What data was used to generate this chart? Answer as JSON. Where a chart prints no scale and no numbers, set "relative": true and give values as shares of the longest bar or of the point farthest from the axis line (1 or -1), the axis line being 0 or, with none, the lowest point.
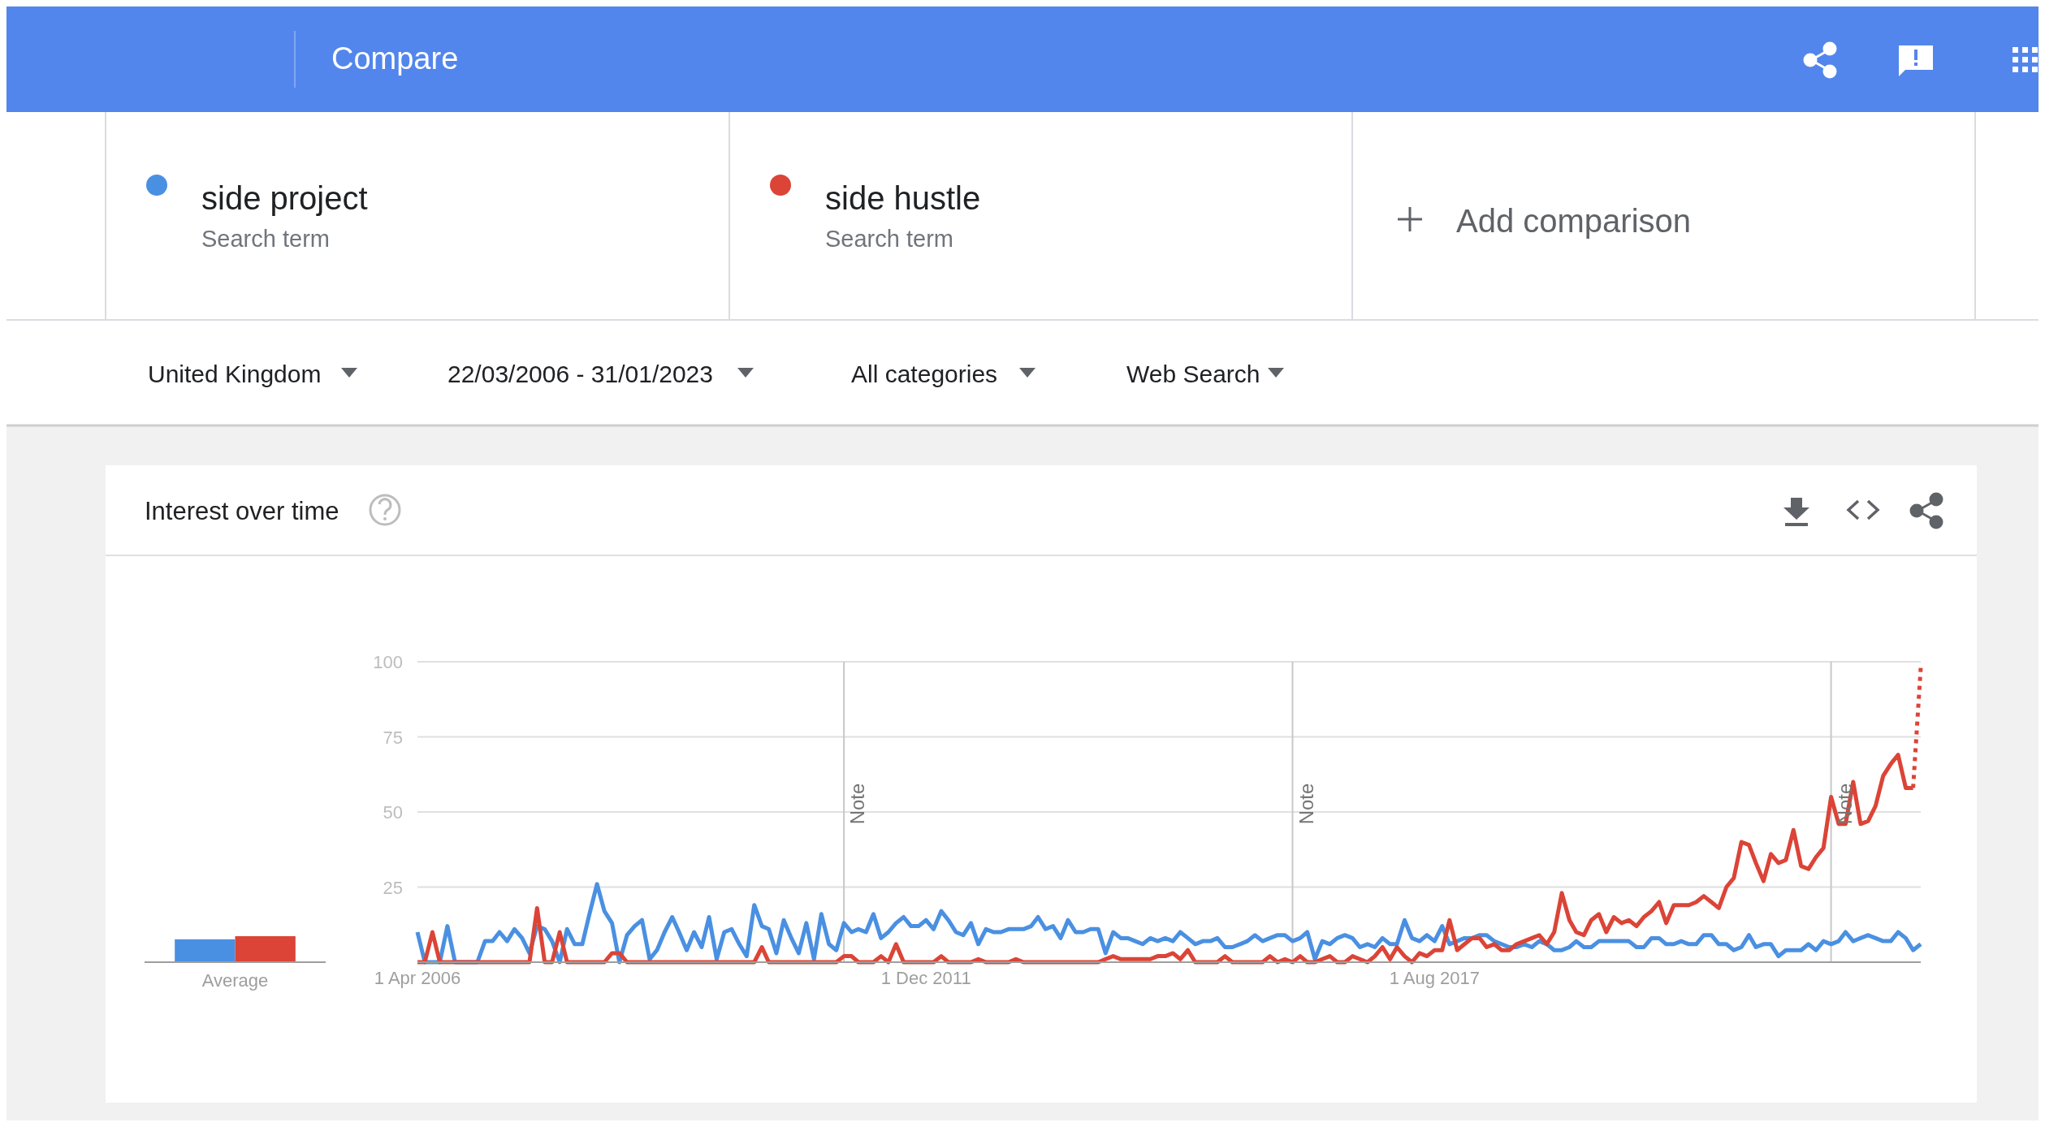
{
  "chart_data": [
    {
      "type": "bar",
      "relative": true,
      "categories": [
        "Average"
      ],
      "legend": false,
      "series": [
        {
          "color": "#4a90e2",
          "values": [
            0.88
          ]
        },
        {
          "color": "#db4437",
          "values": [
            1
          ]
        }
      ]
    },
    {
      "type": "line",
      "title": "Interest over time",
      "legend": "top",
      "grid": "y",
      "ylim": [
        0,
        100
      ],
      "yticks": [
        25,
        50,
        75,
        100
      ],
      "xlim": [
        "2006-04",
        "2023-01"
      ],
      "xticks": [
        {
          "value": "2006-04-01",
          "label": "1 Apr 2006"
        },
        {
          "value": "2011-12-01",
          "label": "1 Dec 2011"
        },
        {
          "value": "2017-08-01",
          "label": "1 Aug 2017"
        }
      ],
      "ref_lines": [
        {
          "axis": "x",
          "value": "2011-01",
          "label": "Note"
        },
        {
          "axis": "x",
          "value": "2016-01",
          "label": "Note"
        },
        {
          "axis": "x",
          "value": "2022-01",
          "label": "Note"
        }
      ],
      "annotations": [
        "Compare",
        "Search term",
        "Search term",
        "Add comparison",
        "United Kingdom",
        "22/03/2006 - 31/01/2023",
        "All categories",
        "Web Search"
      ],
      "x": [
        "2006-04",
        "2006-05",
        "2006-06",
        "2006-07",
        "2006-08",
        "2006-09",
        "2006-10",
        "2006-11",
        "2006-12",
        "2007-01",
        "2007-02",
        "2007-03",
        "2007-04",
        "2007-05",
        "2007-06",
        "2007-07",
        "2007-08",
        "2007-09",
        "2007-10",
        "2007-11",
        "2007-12",
        "2008-01",
        "2008-02",
        "2008-03",
        "2008-04",
        "2008-05",
        "2008-06",
        "2008-07",
        "2008-08",
        "2008-09",
        "2008-10",
        "2008-11",
        "2008-12",
        "2009-01",
        "2009-02",
        "2009-03",
        "2009-04",
        "2009-05",
        "2009-06",
        "2009-07",
        "2009-08",
        "2009-09",
        "2009-10",
        "2009-11",
        "2009-12",
        "2010-01",
        "2010-02",
        "2010-03",
        "2010-04",
        "2010-05",
        "2010-06",
        "2010-07",
        "2010-08",
        "2010-09",
        "2010-10",
        "2010-11",
        "2010-12",
        "2011-01",
        "2011-02",
        "2011-03",
        "2011-04",
        "2011-05",
        "2011-06",
        "2011-07",
        "2011-08",
        "2011-09",
        "2011-10",
        "2011-11",
        "2011-12",
        "2012-01",
        "2012-02",
        "2012-03",
        "2012-04",
        "2012-05",
        "2012-06",
        "2012-07",
        "2012-08",
        "2012-09",
        "2012-10",
        "2012-11",
        "2012-12",
        "2013-01",
        "2013-02",
        "2013-03",
        "2013-04",
        "2013-05",
        "2013-06",
        "2013-07",
        "2013-08",
        "2013-09",
        "2013-10",
        "2013-11",
        "2013-12",
        "2014-01",
        "2014-02",
        "2014-03",
        "2014-04",
        "2014-05",
        "2014-06",
        "2014-07",
        "2014-08",
        "2014-09",
        "2014-10",
        "2014-11",
        "2014-12",
        "2015-01",
        "2015-02",
        "2015-03",
        "2015-04",
        "2015-05",
        "2015-06",
        "2015-07",
        "2015-08",
        "2015-09",
        "2015-10",
        "2015-11",
        "2015-12",
        "2016-01",
        "2016-02",
        "2016-03",
        "2016-04",
        "2016-05",
        "2016-06",
        "2016-07",
        "2016-08",
        "2016-09",
        "2016-10",
        "2016-11",
        "2016-12",
        "2017-01",
        "2017-02",
        "2017-03",
        "2017-04",
        "2017-05",
        "2017-06",
        "2017-07",
        "2017-08",
        "2017-09",
        "2017-10",
        "2017-11",
        "2017-12",
        "2018-01",
        "2018-02",
        "2018-03",
        "2018-04",
        "2018-05",
        "2018-06",
        "2018-07",
        "2018-08",
        "2018-09",
        "2018-10",
        "2018-11",
        "2018-12",
        "2019-01",
        "2019-02",
        "2019-03",
        "2019-04",
        "2019-05",
        "2019-06",
        "2019-07",
        "2019-08",
        "2019-09",
        "2019-10",
        "2019-11",
        "2019-12",
        "2020-01",
        "2020-02",
        "2020-03",
        "2020-04",
        "2020-05",
        "2020-06",
        "2020-07",
        "2020-08",
        "2020-09",
        "2020-10",
        "2020-11",
        "2020-12",
        "2021-01",
        "2021-02",
        "2021-03",
        "2021-04",
        "2021-05",
        "2021-06",
        "2021-07",
        "2021-08",
        "2021-09",
        "2021-10",
        "2021-11",
        "2021-12",
        "2022-01",
        "2022-02",
        "2022-03",
        "2022-04",
        "2022-05",
        "2022-06",
        "2022-07",
        "2022-08",
        "2022-09",
        "2022-10",
        "2022-11",
        "2022-12",
        "2023-01"
      ],
      "series": [
        {
          "name": "side project",
          "color": "#4a90e2",
          "values": [
            10,
            0,
            0,
            0,
            12,
            0,
            0,
            0,
            0,
            7,
            7,
            10,
            7,
            11,
            8,
            3,
            12,
            11,
            7,
            0,
            11,
            6,
            6,
            16,
            26,
            17,
            13,
            0,
            9,
            12,
            14,
            1,
            4,
            10,
            15,
            10,
            4,
            10,
            5,
            15,
            1,
            10,
            11,
            6,
            2,
            19,
            12,
            11,
            3,
            14,
            8,
            3,
            13,
            1,
            16,
            6,
            4,
            13,
            10,
            11,
            10,
            16,
            8,
            10,
            13,
            15,
            12,
            12,
            14,
            11,
            17,
            14,
            10,
            9,
            13,
            6,
            11,
            10,
            10,
            11,
            11,
            11,
            12,
            15,
            11,
            12,
            8,
            14,
            10,
            10,
            11,
            11,
            3,
            10,
            8,
            8,
            7,
            6,
            8,
            7,
            8,
            7,
            10,
            8,
            6,
            7,
            7,
            8,
            5,
            5,
            6,
            7,
            9,
            7,
            8,
            9,
            9,
            7,
            8,
            10,
            1,
            7,
            6,
            8,
            9,
            8,
            5,
            6,
            5,
            8,
            6,
            6,
            14,
            8,
            7,
            9,
            7,
            12,
            6,
            7,
            8,
            8,
            9,
            9,
            7,
            6,
            5,
            5,
            6,
            5,
            7,
            6,
            4,
            4,
            5,
            7,
            5,
            5,
            7,
            7,
            7,
            7,
            7,
            5,
            5,
            8,
            8,
            6,
            6,
            7,
            6,
            6,
            9,
            9,
            6,
            6,
            4,
            5,
            9,
            5,
            6,
            6,
            2,
            4,
            4,
            4,
            6,
            4,
            7,
            6,
            7,
            10,
            7,
            8,
            9,
            8,
            7,
            7,
            10,
            8,
            4,
            6
          ]
        },
        {
          "name": "side hustle",
          "color": "#db4437",
          "values": [
            0,
            0,
            10,
            0,
            0,
            0,
            0,
            0,
            0,
            0,
            0,
            0,
            0,
            0,
            0,
            0,
            18,
            0,
            0,
            10,
            0,
            0,
            0,
            0,
            0,
            0,
            3,
            3,
            0,
            0,
            0,
            0,
            0,
            0,
            0,
            0,
            0,
            0,
            0,
            0,
            0,
            0,
            0,
            0,
            0,
            0,
            5,
            0,
            0,
            0,
            0,
            0,
            0,
            0,
            0,
            0,
            0,
            2,
            2,
            0,
            0,
            0,
            2,
            0,
            6,
            0,
            0,
            0,
            0,
            0,
            2,
            0,
            0,
            0,
            0,
            1,
            0,
            0,
            0,
            0,
            1,
            0,
            0,
            0,
            0,
            0,
            0,
            0,
            0,
            0,
            0,
            0,
            1,
            2,
            1,
            1,
            1,
            1,
            1,
            2,
            2,
            3,
            1,
            4,
            0,
            0,
            0,
            0,
            2,
            0,
            0,
            0,
            0,
            0,
            2,
            0,
            1,
            0,
            2,
            0,
            0,
            1,
            2,
            0,
            0,
            2,
            1,
            0,
            2,
            5,
            1,
            5,
            2,
            0,
            3,
            2,
            4,
            4,
            14,
            4,
            6,
            8,
            8,
            5,
            6,
            4,
            4,
            6,
            7,
            8,
            9,
            6,
            10,
            23,
            14,
            10,
            9,
            14,
            16,
            10,
            15,
            13,
            14,
            12,
            15,
            17,
            20,
            13,
            19,
            19,
            19,
            20,
            22,
            20,
            18,
            25,
            28,
            40,
            39,
            33,
            27,
            36,
            33,
            34,
            44,
            32,
            31,
            35,
            38,
            55,
            46,
            46,
            60,
            46,
            47,
            52,
            62,
            66,
            69,
            58,
            58,
            null
          ]
        },
        {
          "type": "line",
          "line_style": "dotted",
          "color": "#db4437",
          "x": [
            "2022-12",
            "2023-01"
          ],
          "values": [
            58,
            98
          ]
        }
      ]
    }
  ]
}
